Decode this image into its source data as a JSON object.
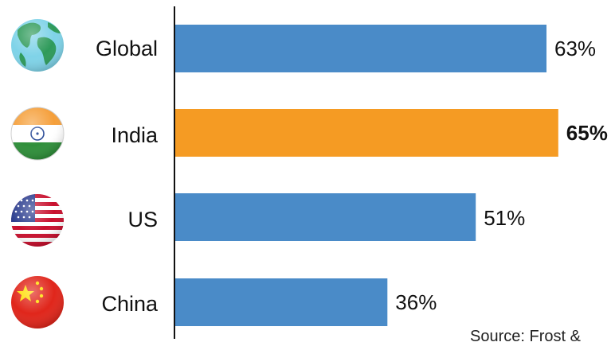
{
  "chart_data": {
    "type": "bar",
    "orientation": "horizontal",
    "categories": [
      "Global",
      "India",
      "US",
      "China"
    ],
    "values": [
      63,
      65,
      51,
      36
    ],
    "value_labels": [
      "63%",
      "65%",
      "51%",
      "36%"
    ],
    "highlight_index": 1,
    "icons": [
      "globe-icon",
      "india-flag-icon",
      "us-flag-icon",
      "china-flag-icon"
    ],
    "colors": {
      "default": "#4A8BC8",
      "highlight": "#F59B23"
    },
    "grid": false,
    "xlim": [
      0,
      100
    ]
  },
  "source_text": "Source: Frost & "
}
